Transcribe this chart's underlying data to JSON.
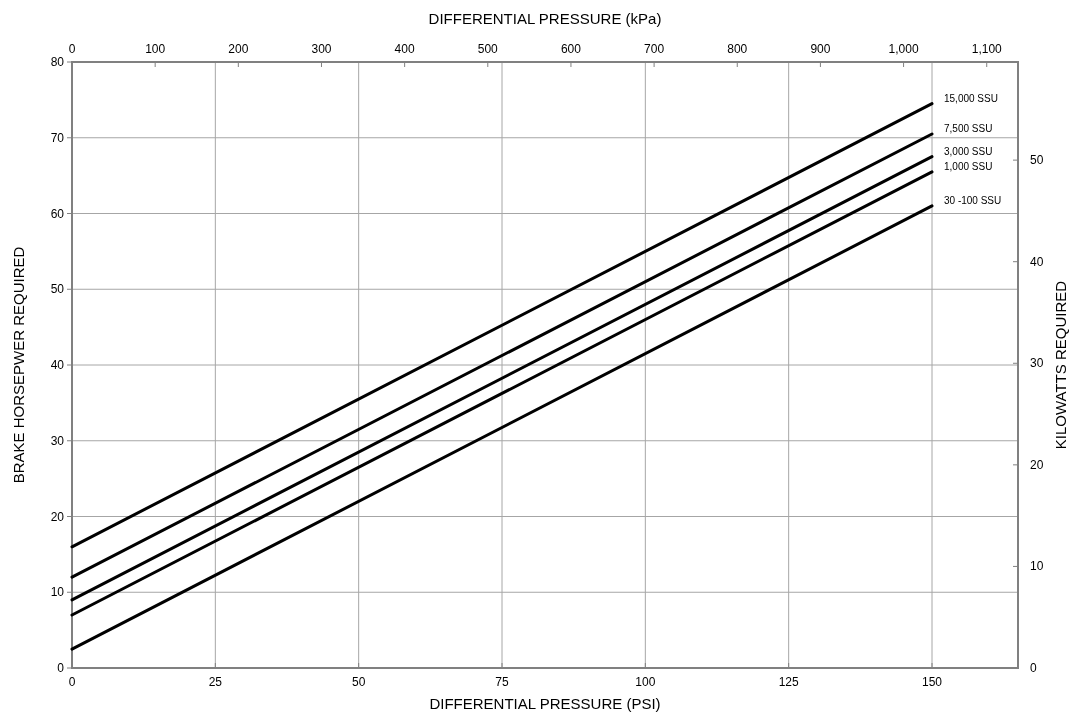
{
  "chart_data": {
    "type": "line",
    "xlabel": "DIFFERENTIAL PRESSURE (PSI)",
    "ylabel": "BRAKE HORSEPWER REQUIRED",
    "y2label": "KILOWATTS REQUIRED",
    "x2label": "DIFFERENTIAL PRESSURE (kPa)",
    "x": [
      0,
      150
    ],
    "series": [
      {
        "name": "15,000 SSU",
        "color": "#000000",
        "values": [
          16,
          74.5
        ]
      },
      {
        "name": "7,500 SSU",
        "color": "#000000",
        "values": [
          12,
          70.5
        ]
      },
      {
        "name": "3,000 SSU",
        "color": "#000000",
        "values": [
          9,
          67.5
        ]
      },
      {
        "name": "1,000 SSU",
        "color": "#000000",
        "values": [
          7,
          65.5
        ]
      },
      {
        "name": "30 -100 SSU",
        "color": "#000000",
        "values": [
          2.5,
          61
        ]
      }
    ],
    "xlim": [
      0,
      165
    ],
    "xticks": [
      0,
      25,
      50,
      75,
      100,
      125,
      150
    ],
    "ylim": [
      0,
      80
    ],
    "yticks": [
      0,
      10,
      20,
      30,
      40,
      50,
      60,
      70,
      80
    ],
    "y2lim": [
      0,
      59.66
    ],
    "y2ticks": [
      0,
      10,
      20,
      30,
      40,
      50
    ],
    "x2lim": [
      0,
      1137.6
    ],
    "x2ticks": [
      0,
      100,
      200,
      300,
      400,
      500,
      600,
      700,
      800,
      900,
      {
        "value": 1000,
        "label": "1,000"
      },
      {
        "value": 1100,
        "label": "1,100"
      }
    ],
    "grid": true,
    "legend": false,
    "marker": "none",
    "line_style": "solid"
  }
}
